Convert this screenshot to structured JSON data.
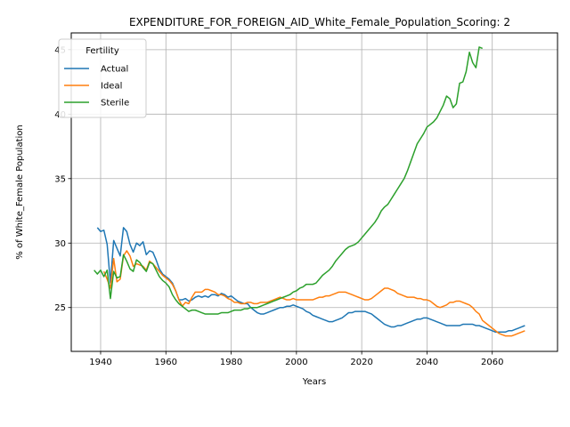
{
  "chart_data": {
    "type": "line",
    "title": "EXPENDITURE_FOR_FOREIGN_AID_White_Female_Population_Scoring: 2",
    "xlabel": "Years",
    "ylabel": "% of White_Female Population",
    "xlim": [
      1931,
      2080
    ],
    "ylim": [
      21.6,
      46.3
    ],
    "xticks": [
      1940,
      1960,
      1980,
      2000,
      2020,
      2040,
      2060
    ],
    "yticks": [
      25,
      30,
      35,
      40,
      45
    ],
    "grid": true,
    "legend": {
      "title": "Fertility",
      "placement": "top-left"
    },
    "series": [
      {
        "name": "Actual",
        "color": "#1f77b4",
        "x": [
          1939,
          1940,
          1941,
          1942,
          1943,
          1944,
          1945,
          1946,
          1947,
          1948,
          1949,
          1950,
          1951,
          1952,
          1953,
          1954,
          1955,
          1956,
          1957,
          1958,
          1959,
          1960,
          1961,
          1962,
          1963,
          1964,
          1965,
          1966,
          1967,
          1968,
          1969,
          1970,
          1971,
          1972,
          1973,
          1974,
          1975,
          1976,
          1977,
          1978,
          1979,
          1980,
          1981,
          1982,
          1983,
          1984,
          1985,
          1986,
          1987,
          1988,
          1989,
          1990,
          1991,
          1992,
          1993,
          1994,
          1995,
          1996,
          1997,
          1998,
          1999,
          2000,
          2001,
          2002,
          2003,
          2004,
          2005,
          2006,
          2007,
          2008,
          2009,
          2010,
          2011,
          2012,
          2013,
          2014,
          2015,
          2016,
          2017,
          2018,
          2019,
          2020,
          2021,
          2022,
          2023,
          2024,
          2025,
          2026,
          2027,
          2028,
          2029,
          2030,
          2031,
          2032,
          2033,
          2034,
          2035,
          2036,
          2037,
          2038,
          2039,
          2040,
          2041,
          2042,
          2043,
          2044,
          2045,
          2046,
          2047,
          2048,
          2049,
          2050,
          2051,
          2052,
          2053,
          2054,
          2055,
          2056,
          2057,
          2058,
          2059,
          2060,
          2061,
          2062,
          2063,
          2064,
          2065,
          2066,
          2067,
          2068,
          2069,
          2070
        ],
        "values": [
          31.2,
          30.9,
          31.0,
          29.9,
          26.9,
          30.2,
          29.6,
          29.0,
          31.2,
          30.9,
          29.9,
          29.3,
          30.0,
          29.8,
          30.1,
          29.1,
          29.4,
          29.3,
          28.7,
          28.0,
          27.6,
          27.4,
          27.2,
          26.9,
          26.3,
          25.6,
          25.6,
          25.7,
          25.5,
          25.6,
          25.8,
          25.9,
          25.8,
          25.9,
          25.8,
          26.0,
          26.0,
          25.9,
          26.1,
          26.0,
          25.8,
          25.9,
          25.7,
          25.5,
          25.4,
          25.3,
          25.3,
          25.0,
          24.8,
          24.6,
          24.5,
          24.5,
          24.6,
          24.7,
          24.8,
          24.9,
          25.0,
          25.0,
          25.1,
          25.1,
          25.2,
          25.1,
          25.0,
          24.9,
          24.7,
          24.6,
          24.4,
          24.3,
          24.2,
          24.1,
          24.0,
          23.9,
          23.9,
          24.0,
          24.1,
          24.2,
          24.4,
          24.6,
          24.6,
          24.7,
          24.7,
          24.7,
          24.7,
          24.6,
          24.5,
          24.3,
          24.1,
          23.9,
          23.7,
          23.6,
          23.5,
          23.5,
          23.6,
          23.6,
          23.7,
          23.8,
          23.9,
          24.0,
          24.1,
          24.1,
          24.2,
          24.2,
          24.1,
          24.0,
          23.9,
          23.8,
          23.7,
          23.6,
          23.6,
          23.6,
          23.6,
          23.6,
          23.7,
          23.7,
          23.7,
          23.7,
          23.6,
          23.6,
          23.5,
          23.4,
          23.3,
          23.2,
          23.1,
          23.1,
          23.1,
          23.1,
          23.2,
          23.2,
          23.3,
          23.4,
          23.5,
          23.6
        ]
      },
      {
        "name": "Ideal",
        "color": "#ff7f0e",
        "x": [
          1941,
          1942,
          1943,
          1944,
          1945,
          1946,
          1947,
          1948,
          1949,
          1950,
          1951,
          1952,
          1953,
          1954,
          1955,
          1956,
          1957,
          1958,
          1959,
          1960,
          1961,
          1962,
          1963,
          1964,
          1965,
          1966,
          1967,
          1968,
          1969,
          1970,
          1971,
          1972,
          1973,
          1974,
          1975,
          1976,
          1977,
          1978,
          1979,
          1980,
          1981,
          1982,
          1983,
          1984,
          1985,
          1986,
          1987,
          1988,
          1989,
          1990,
          1991,
          1992,
          1993,
          1994,
          1995,
          1996,
          1997,
          1998,
          1999,
          2000,
          2001,
          2002,
          2003,
          2004,
          2005,
          2006,
          2007,
          2008,
          2009,
          2010,
          2011,
          2012,
          2013,
          2014,
          2015,
          2016,
          2017,
          2018,
          2019,
          2020,
          2021,
          2022,
          2023,
          2024,
          2025,
          2026,
          2027,
          2028,
          2029,
          2030,
          2031,
          2032,
          2033,
          2034,
          2035,
          2036,
          2037,
          2038,
          2039,
          2040,
          2041,
          2042,
          2043,
          2044,
          2045,
          2046,
          2047,
          2048,
          2049,
          2050,
          2051,
          2052,
          2053,
          2054,
          2055,
          2056,
          2057,
          2058,
          2059,
          2060,
          2061,
          2062,
          2063,
          2064,
          2065,
          2066,
          2067,
          2068,
          2069,
          2070
        ],
        "values": [
          27.8,
          27.2,
          26.5,
          28.8,
          27.0,
          27.2,
          29.0,
          29.4,
          29.0,
          28.2,
          28.4,
          28.3,
          28.2,
          27.9,
          28.6,
          28.4,
          28.1,
          27.8,
          27.5,
          27.3,
          27.1,
          26.8,
          26.3,
          25.6,
          25.1,
          25.4,
          25.3,
          25.8,
          26.2,
          26.2,
          26.2,
          26.4,
          26.4,
          26.3,
          26.2,
          26.0,
          26.0,
          25.9,
          25.7,
          25.6,
          25.4,
          25.4,
          25.3,
          25.3,
          25.4,
          25.4,
          25.3,
          25.3,
          25.4,
          25.4,
          25.4,
          25.5,
          25.6,
          25.7,
          25.8,
          25.7,
          25.6,
          25.6,
          25.7,
          25.6,
          25.6,
          25.6,
          25.6,
          25.6,
          25.6,
          25.7,
          25.8,
          25.8,
          25.9,
          25.9,
          26.0,
          26.1,
          26.2,
          26.2,
          26.2,
          26.1,
          26.0,
          25.9,
          25.8,
          25.7,
          25.6,
          25.6,
          25.7,
          25.9,
          26.1,
          26.3,
          26.5,
          26.5,
          26.4,
          26.3,
          26.1,
          26.0,
          25.9,
          25.8,
          25.8,
          25.8,
          25.7,
          25.7,
          25.6,
          25.6,
          25.5,
          25.3,
          25.1,
          25.0,
          25.1,
          25.2,
          25.4,
          25.4,
          25.5,
          25.5,
          25.4,
          25.3,
          25.2,
          25.0,
          24.7,
          24.5,
          24.0,
          23.8,
          23.6,
          23.4,
          23.2,
          23.0,
          22.9,
          22.8,
          22.8,
          22.8,
          22.9,
          23.0,
          23.1,
          23.2
        ]
      },
      {
        "name": "Sterile",
        "color": "#2ca02c",
        "x": [
          1938,
          1939,
          1940,
          1941,
          1942,
          1943,
          1944,
          1945,
          1946,
          1947,
          1948,
          1949,
          1950,
          1951,
          1952,
          1953,
          1954,
          1955,
          1956,
          1957,
          1958,
          1959,
          1960,
          1961,
          1962,
          1963,
          1964,
          1965,
          1966,
          1967,
          1968,
          1969,
          1970,
          1971,
          1972,
          1973,
          1974,
          1975,
          1976,
          1977,
          1978,
          1979,
          1980,
          1981,
          1982,
          1983,
          1984,
          1985,
          1986,
          1987,
          1988,
          1989,
          1990,
          1991,
          1992,
          1993,
          1994,
          1995,
          1996,
          1997,
          1998,
          1999,
          2000,
          2001,
          2002,
          2003,
          2004,
          2005,
          2006,
          2007,
          2008,
          2009,
          2010,
          2011,
          2012,
          2013,
          2014,
          2015,
          2016,
          2017,
          2018,
          2019,
          2020,
          2021,
          2022,
          2023,
          2024,
          2025,
          2026,
          2027,
          2028,
          2029,
          2030,
          2031,
          2032,
          2033,
          2034,
          2035,
          2036,
          2037,
          2038,
          2039,
          2040,
          2041,
          2042,
          2043,
          2044,
          2045,
          2046,
          2047,
          2048,
          2049,
          2050,
          2051,
          2052,
          2053,
          2054,
          2055,
          2056,
          2057
        ],
        "values": [
          27.9,
          27.6,
          27.9,
          27.4,
          27.9,
          25.7,
          27.8,
          27.3,
          27.4,
          29.1,
          28.6,
          28.0,
          27.8,
          28.7,
          28.5,
          28.1,
          27.8,
          28.5,
          28.4,
          27.9,
          27.4,
          27.1,
          26.9,
          26.6,
          26.0,
          25.6,
          25.3,
          25.1,
          24.9,
          24.7,
          24.8,
          24.8,
          24.7,
          24.6,
          24.5,
          24.5,
          24.5,
          24.5,
          24.5,
          24.6,
          24.6,
          24.6,
          24.7,
          24.8,
          24.8,
          24.8,
          24.9,
          24.9,
          25.0,
          25.0,
          25.0,
          25.1,
          25.2,
          25.3,
          25.4,
          25.5,
          25.6,
          25.7,
          25.8,
          25.9,
          26.0,
          26.2,
          26.3,
          26.5,
          26.6,
          26.8,
          26.8,
          26.8,
          26.9,
          27.2,
          27.5,
          27.7,
          27.9,
          28.2,
          28.6,
          28.9,
          29.2,
          29.5,
          29.7,
          29.8,
          29.9,
          30.1,
          30.4,
          30.7,
          31.0,
          31.3,
          31.6,
          32.0,
          32.5,
          32.8,
          33.0,
          33.4,
          33.8,
          34.2,
          34.6,
          35.0,
          35.6,
          36.3,
          37.0,
          37.7,
          38.1,
          38.5,
          39.0,
          39.2,
          39.4,
          39.7,
          40.2,
          40.7,
          41.4,
          41.2,
          40.5,
          40.8,
          42.4,
          42.5,
          43.3,
          44.8,
          44.0,
          43.6,
          45.2,
          45.1
        ]
      }
    ]
  }
}
